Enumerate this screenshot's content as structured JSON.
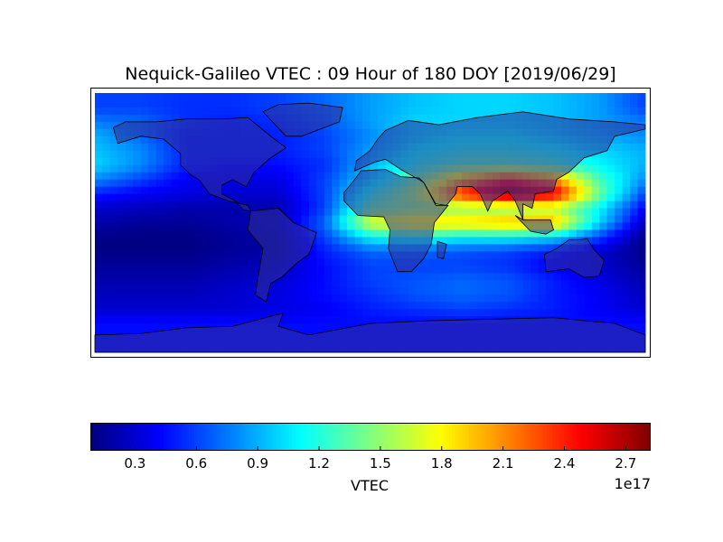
{
  "chart_data": {
    "type": "heatmap",
    "title": "Nequick-Galileo VTEC : 09 Hour of 180 DOY [2019/06/29]",
    "colorbar": {
      "label": "VTEC",
      "exponent_label": "1e17",
      "colormap": "jet",
      "range": [
        0.084,
        2.82
      ],
      "ticks": [
        "0.3",
        "0.6",
        "0.9",
        "1.2",
        "1.5",
        "1.8",
        "2.1",
        "2.4",
        "2.7"
      ],
      "tick_values": [
        0.3,
        0.6,
        0.9,
        1.2,
        1.5,
        1.8,
        2.1,
        2.4,
        2.7
      ]
    },
    "units_scale": 1e+17,
    "lon": [
      -180,
      -150,
      -120,
      -90,
      -60,
      -30,
      0,
      30,
      60,
      90,
      120,
      150,
      180
    ],
    "lat": [
      90,
      80,
      70,
      60,
      50,
      40,
      30,
      20,
      10,
      0,
      -10,
      -20,
      -30,
      -40,
      -50,
      -60,
      -70,
      -80,
      -90
    ],
    "values": [
      [
        0.6,
        0.6,
        0.55,
        0.55,
        0.6,
        0.7,
        0.85,
        0.95,
        1.0,
        1.0,
        0.95,
        0.85,
        0.6
      ],
      [
        0.6,
        0.6,
        0.55,
        0.55,
        0.6,
        0.7,
        0.85,
        0.95,
        1.0,
        1.0,
        0.95,
        0.85,
        0.6
      ],
      [
        0.75,
        0.7,
        0.55,
        0.5,
        0.55,
        0.65,
        0.85,
        1.0,
        1.0,
        1.0,
        0.95,
        0.85,
        0.75
      ],
      [
        0.9,
        0.7,
        0.5,
        0.5,
        0.5,
        0.6,
        0.8,
        1.0,
        1.1,
        1.1,
        1.0,
        0.9,
        0.8
      ],
      [
        0.95,
        0.8,
        0.5,
        0.5,
        0.5,
        0.6,
        0.85,
        1.1,
        1.2,
        1.2,
        1.15,
        1.0,
        0.9
      ],
      [
        1.0,
        0.8,
        0.5,
        0.45,
        0.45,
        0.55,
        0.9,
        1.2,
        1.35,
        1.35,
        1.3,
        1.1,
        0.9
      ],
      [
        0.8,
        0.6,
        0.4,
        0.35,
        0.35,
        0.6,
        1.0,
        1.4,
        2.0,
        2.4,
        2.1,
        1.3,
        0.8
      ],
      [
        0.5,
        0.4,
        0.35,
        0.3,
        0.3,
        0.6,
        1.2,
        1.6,
        2.4,
        2.8,
        2.6,
        1.4,
        0.6
      ],
      [
        0.3,
        0.25,
        0.2,
        0.2,
        0.2,
        0.6,
        1.4,
        1.5,
        1.5,
        1.5,
        1.6,
        1.1,
        0.4
      ],
      [
        0.2,
        0.15,
        0.15,
        0.2,
        0.25,
        0.7,
        1.7,
        1.9,
        1.9,
        2.0,
        2.0,
        1.0,
        0.25
      ],
      [
        0.1,
        0.1,
        0.1,
        0.15,
        0.2,
        0.6,
        1.1,
        1.2,
        1.1,
        1.1,
        1.0,
        0.6,
        0.1
      ],
      [
        0.1,
        0.1,
        0.1,
        0.15,
        0.2,
        0.5,
        0.7,
        0.7,
        0.65,
        0.6,
        0.5,
        0.3,
        0.1
      ],
      [
        0.15,
        0.15,
        0.15,
        0.2,
        0.25,
        0.45,
        0.6,
        0.6,
        0.6,
        0.55,
        0.4,
        0.3,
        0.15
      ],
      [
        0.2,
        0.2,
        0.2,
        0.25,
        0.3,
        0.45,
        0.6,
        0.65,
        0.7,
        0.65,
        0.5,
        0.35,
        0.2
      ],
      [
        0.25,
        0.25,
        0.25,
        0.3,
        0.35,
        0.45,
        0.55,
        0.65,
        0.7,
        0.65,
        0.5,
        0.4,
        0.25
      ],
      [
        0.3,
        0.3,
        0.3,
        0.3,
        0.35,
        0.4,
        0.5,
        0.55,
        0.6,
        0.55,
        0.5,
        0.4,
        0.3
      ],
      [
        0.45,
        0.45,
        0.45,
        0.45,
        0.45,
        0.45,
        0.45,
        0.45,
        0.45,
        0.45,
        0.45,
        0.45,
        0.45
      ],
      [
        0.45,
        0.45,
        0.45,
        0.45,
        0.45,
        0.45,
        0.45,
        0.45,
        0.45,
        0.45,
        0.45,
        0.45,
        0.45
      ],
      [
        0.45,
        0.45,
        0.45,
        0.45,
        0.45,
        0.45,
        0.45,
        0.45,
        0.45,
        0.45,
        0.45,
        0.45,
        0.45
      ]
    ],
    "xlim": [
      -180,
      180
    ],
    "ylim": [
      -90,
      90
    ],
    "grid": false
  }
}
